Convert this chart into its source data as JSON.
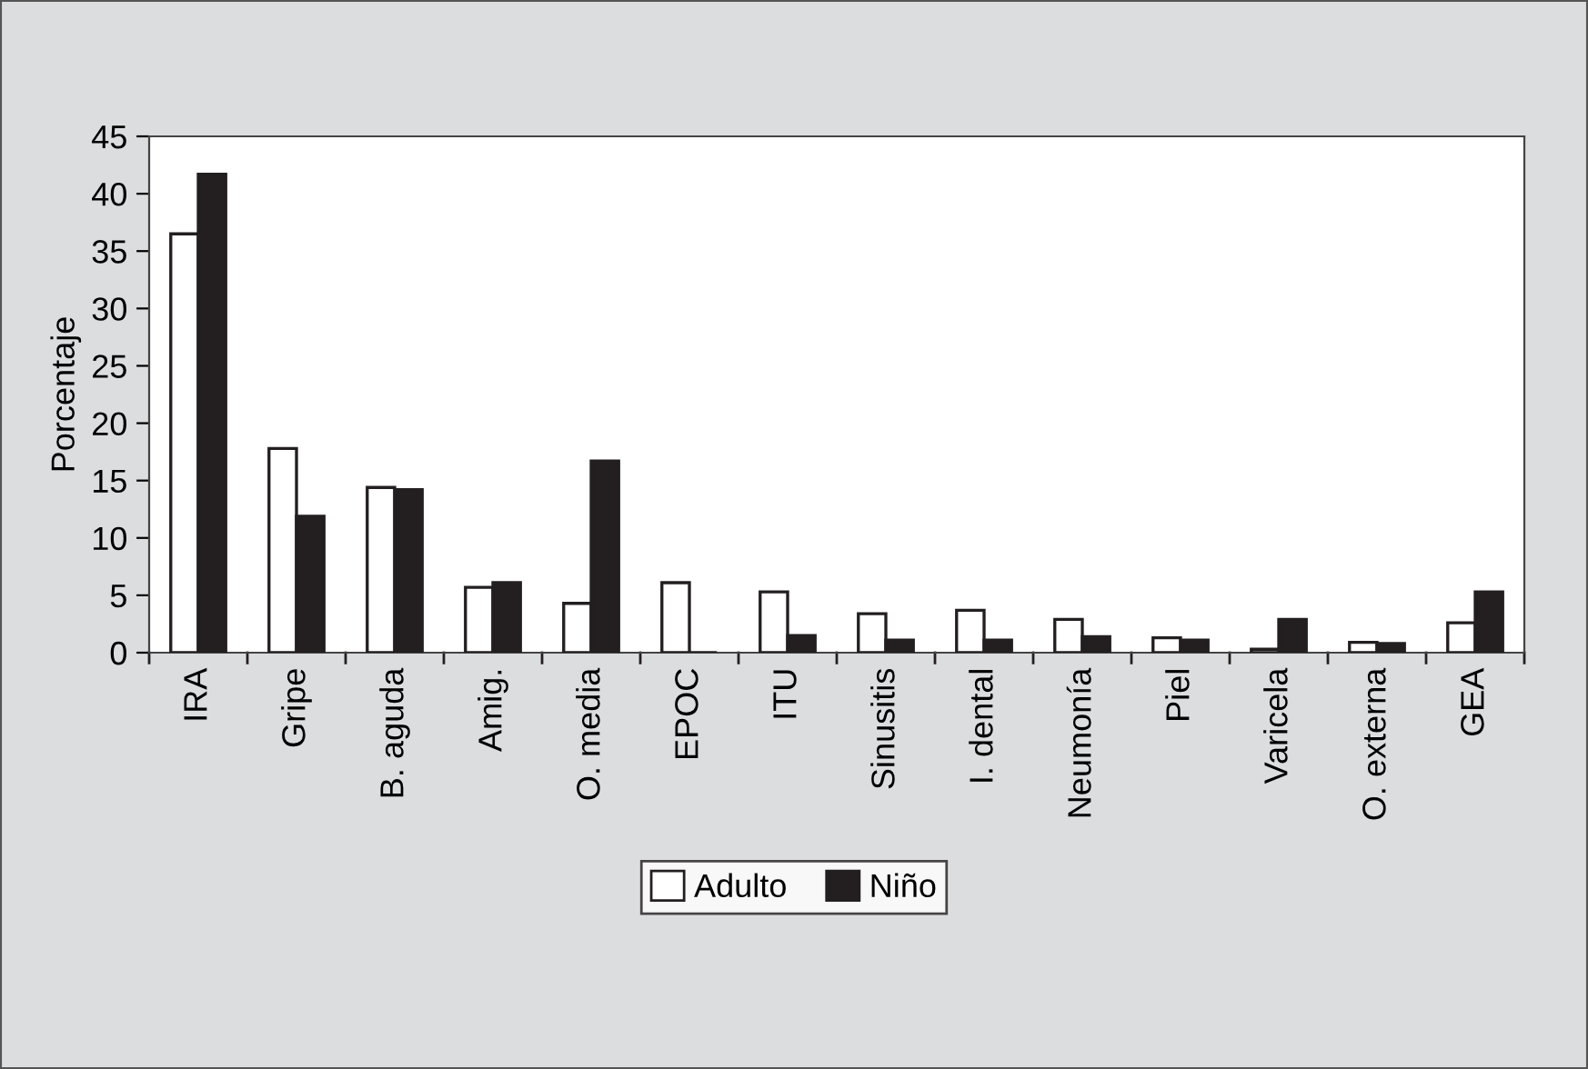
{
  "chart_data": {
    "type": "bar",
    "ylabel": "Porcentaje",
    "categories": [
      "IRA",
      "Gripe",
      "B. aguda",
      "Amig.",
      "O. media",
      "EPOC",
      "ITU",
      "Sinusitis",
      "I. dental",
      "Neumonía",
      "Piel",
      "Varicela",
      "O. externa",
      "GEA"
    ],
    "series": [
      {
        "name": "Adulto",
        "color": "#ffffff",
        "values": [
          36.5,
          17.8,
          14.4,
          5.7,
          4.3,
          6.1,
          5.3,
          3.4,
          3.7,
          2.9,
          1.3,
          0.3,
          0.9,
          2.6
        ]
      },
      {
        "name": "Niño",
        "color": "#231f20",
        "values": [
          41.7,
          11.9,
          14.2,
          6.1,
          16.7,
          0,
          1.5,
          1.1,
          1.1,
          1.4,
          1.1,
          2.9,
          0.8,
          5.3
        ]
      }
    ],
    "ylim": [
      0,
      45
    ],
    "yticks": [
      0,
      5,
      10,
      15,
      20,
      25,
      30,
      35,
      40,
      45
    ],
    "grid": false,
    "legend": "bottom"
  }
}
